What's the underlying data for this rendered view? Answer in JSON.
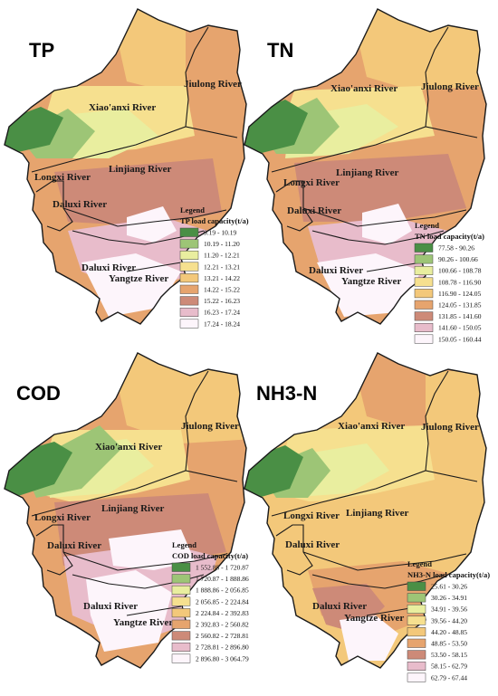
{
  "panels": [
    {
      "id": "tp",
      "title": "TP",
      "legend_heading": "Legend",
      "legend_title": "TP load capacity(t/a)",
      "classes": [
        {
          "range": "9.19 - 10.19",
          "color": "#4a8f45"
        },
        {
          "range": "10.19 - 11.20",
          "color": "#9dc576"
        },
        {
          "range": "11.20 - 12.21",
          "color": "#e9ee9f"
        },
        {
          "range": "12.21 - 13.21",
          "color": "#f6e08f"
        },
        {
          "range": "13.21 - 14.22",
          "color": "#f3c87a"
        },
        {
          "range": "14.22 - 15.22",
          "color": "#e6a46e"
        },
        {
          "range": "15.22 - 16.23",
          "color": "#cd8a78"
        },
        {
          "range": "16.23 - 17.24",
          "color": "#e8bccb"
        },
        {
          "range": "17.24 - 18.24",
          "color": "#fdf5fb"
        }
      ],
      "rivers": {
        "xiaoanxi": "Xiao'anxi River",
        "jiulong": "Jiulong River",
        "linjiang": "Linjiang River",
        "longxi": "Longxi River",
        "daluxi_upper": "Daluxi River",
        "daluxi_lower": "Daluxi River",
        "yangtze": "Yangtze River"
      }
    },
    {
      "id": "tn",
      "title": "TN",
      "legend_heading": "Legend",
      "legend_title": "TN load capacity(t/a)",
      "classes": [
        {
          "range": "77.58 - 90.26",
          "color": "#4a8f45"
        },
        {
          "range": "90.26 - 100.66",
          "color": "#9dc576"
        },
        {
          "range": "100.66 - 108.78",
          "color": "#e9ee9f"
        },
        {
          "range": "108.78 - 116.90",
          "color": "#f6e08f"
        },
        {
          "range": "116.90 - 124.05",
          "color": "#f3c87a"
        },
        {
          "range": "124.05 - 131.85",
          "color": "#e6a46e"
        },
        {
          "range": "131.85 - 141.60",
          "color": "#cd8a78"
        },
        {
          "range": "141.60 - 150.05",
          "color": "#e8bccb"
        },
        {
          "range": "150.05 - 160.44",
          "color": "#fdf5fb"
        }
      ],
      "rivers": {
        "xiaoanxi": "Xiao'anxi River",
        "jiulong": "Jiulong River",
        "linjiang": "Linjiang River",
        "longxi": "Longxi River",
        "daluxi_upper": "Daluxi River",
        "daluxi_lower": "Daluxi River",
        "yangtze": "Yangtze River"
      }
    },
    {
      "id": "cod",
      "title": "COD",
      "legend_heading": "Legend",
      "legend_title": "COD load capacity(t/a)",
      "classes": [
        {
          "range": "1 552.88 - 1 720.87",
          "color": "#4a8f45"
        },
        {
          "range": "1 720.87 - 1 888.86",
          "color": "#9dc576"
        },
        {
          "range": "1 888.86 - 2 056.85",
          "color": "#e9ee9f"
        },
        {
          "range": "2 056.85 - 2 224.84",
          "color": "#f6e08f"
        },
        {
          "range": "2 224.84 - 2 392.83",
          "color": "#f3c87a"
        },
        {
          "range": "2 392.83 - 2 560.82",
          "color": "#e6a46e"
        },
        {
          "range": "2 560.82 - 2 728.81",
          "color": "#cd8a78"
        },
        {
          "range": "2 728.81 - 2 896.80",
          "color": "#e8bccb"
        },
        {
          "range": "2 896.80 - 3 064.79",
          "color": "#fdf5fb"
        }
      ],
      "rivers": {
        "xiaoanxi": "Xiao'anxi River",
        "jiulong": "Jiulong River",
        "linjiang": "Linjiang River",
        "longxi": "Longxi River",
        "daluxi_upper": "Daluxi River",
        "daluxi_lower": "Daluxi River",
        "yangtze": "Yangtze River"
      }
    },
    {
      "id": "nh3n",
      "title": "NH3-N",
      "legend_heading": "Legend",
      "legend_title": "NH3-N load capacity(t/a)",
      "classes": [
        {
          "range": "25.61 - 30.26",
          "color": "#4a8f45"
        },
        {
          "range": "30.26 - 34.91",
          "color": "#9dc576"
        },
        {
          "range": "34.91 - 39.56",
          "color": "#e9ee9f"
        },
        {
          "range": "39.56 - 44.20",
          "color": "#f6e08f"
        },
        {
          "range": "44.20 - 48.85",
          "color": "#f3c87a"
        },
        {
          "range": "48.85 - 53.50",
          "color": "#e6a46e"
        },
        {
          "range": "53.50 - 58.15",
          "color": "#cd8a78"
        },
        {
          "range": "58.15 - 62.79",
          "color": "#e8bccb"
        },
        {
          "range": "62.79 - 67.44",
          "color": "#fdf5fb"
        }
      ],
      "rivers": {
        "xiaoanxi": "Xiao'anxi River",
        "jiulong": "Jiulong River",
        "linjiang": "Linjiang River",
        "longxi": "Longxi River",
        "daluxi_upper": "Daluxi River",
        "daluxi_lower": "Daluxi River",
        "yangtze": "Yangtze River"
      }
    }
  ]
}
